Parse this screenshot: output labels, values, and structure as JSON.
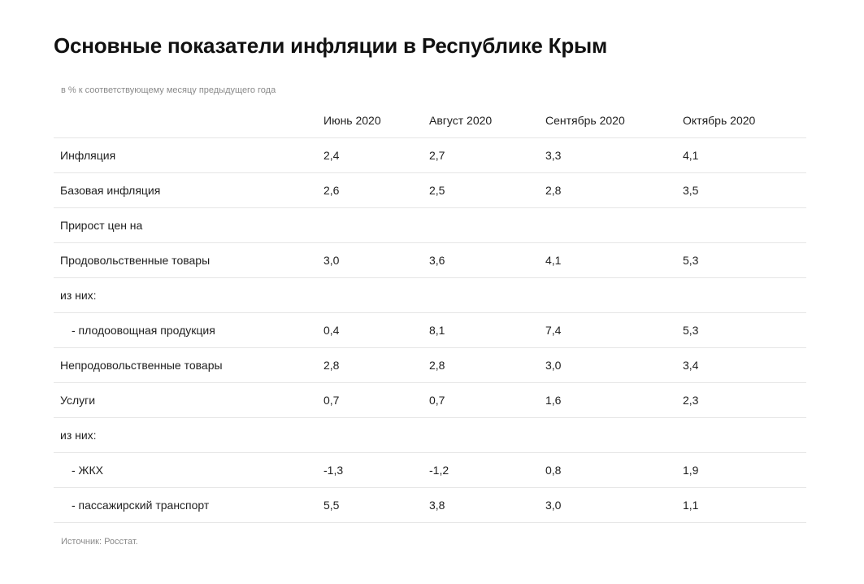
{
  "title": "Основные показатели инфляции в Республике Крым",
  "subtitle": "в % к соответствующему месяцу предыдущего года",
  "table": {
    "columns": [
      "Июнь 2020",
      "Август 2020",
      "Сентябрь 2020",
      "Октябрь 2020"
    ],
    "rows": [
      {
        "label": "Инфляция",
        "values": [
          "2,4",
          "2,7",
          "3,3",
          "4,1"
        ]
      },
      {
        "label": "Базовая инфляция",
        "values": [
          "2,6",
          "2,5",
          "2,8",
          "3,5"
        ]
      },
      {
        "label": "Прирост цен на",
        "values": [
          "",
          "",
          "",
          ""
        ]
      },
      {
        "label": "Продовольственные товары",
        "values": [
          "3,0",
          "3,6",
          "4,1",
          "5,3"
        ]
      },
      {
        "label": "из них:",
        "values": [
          "",
          "",
          "",
          ""
        ]
      },
      {
        "label": "- плодоовощная продукция",
        "values": [
          "0,4",
          "8,1",
          "7,4",
          "5,3"
        ]
      },
      {
        "label": "Непродовольственные товары",
        "values": [
          "2,8",
          "2,8",
          "3,0",
          "3,4"
        ]
      },
      {
        "label": "Услуги",
        "values": [
          "0,7",
          "0,7",
          "1,6",
          "2,3"
        ]
      },
      {
        "label": "из них:",
        "values": [
          "",
          "",
          "",
          ""
        ]
      },
      {
        "label": "- ЖКХ",
        "values": [
          "-1,3",
          "-1,2",
          "0,8",
          "1,9"
        ]
      },
      {
        "label": "- пассажирский транспорт",
        "values": [
          "5,5",
          "3,8",
          "3,0",
          "1,1"
        ]
      }
    ]
  },
  "source": "Источник: Росстат."
}
